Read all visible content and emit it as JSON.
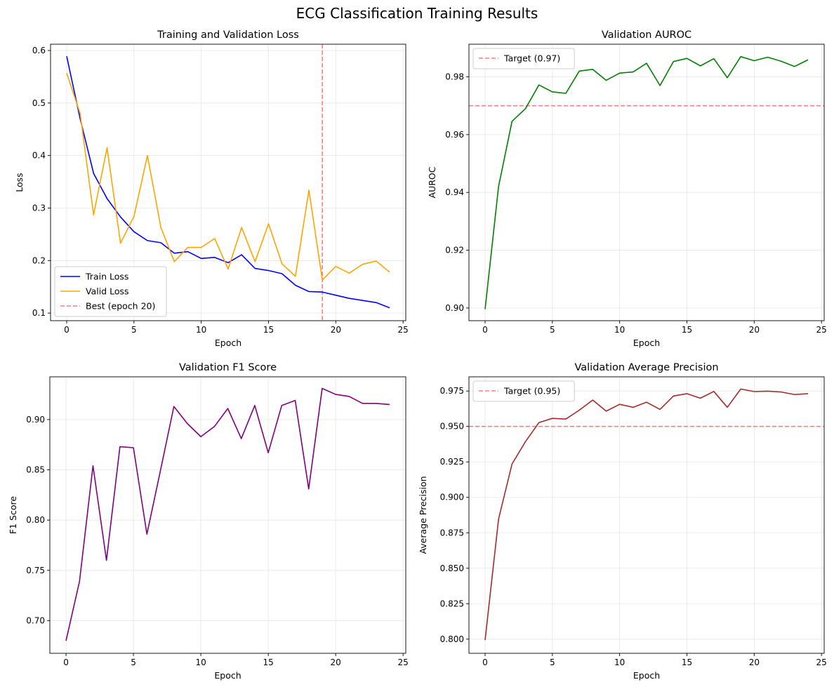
{
  "figure": {
    "suptitle": "ECG Classification Training Results"
  },
  "chart_data": [
    {
      "type": "line",
      "title": "Training and Validation Loss",
      "xlabel": "Epoch",
      "ylabel": "Loss",
      "xlim": [
        -1.2,
        25.2
      ],
      "ylim": [
        0.0855,
        0.612
      ],
      "xticks": [
        0,
        5,
        10,
        15,
        20,
        25
      ],
      "yticks": [
        0.1,
        0.2,
        0.3,
        0.4,
        0.5,
        0.6
      ],
      "ytick_decimals": 1,
      "grid": true,
      "legend_position": "lower-left",
      "x": [
        0,
        1,
        2,
        3,
        4,
        5,
        6,
        7,
        8,
        9,
        10,
        11,
        12,
        13,
        14,
        15,
        16,
        17,
        18,
        19,
        20,
        21,
        22,
        23,
        24
      ],
      "series": [
        {
          "name": "Train Loss",
          "color": "#0000ff",
          "values": [
            0.589,
            0.47,
            0.366,
            0.318,
            0.283,
            0.255,
            0.238,
            0.234,
            0.214,
            0.217,
            0.204,
            0.206,
            0.196,
            0.211,
            0.185,
            0.181,
            0.175,
            0.153,
            0.141,
            0.14,
            0.134,
            0.128,
            0.124,
            0.12,
            0.11
          ]
        },
        {
          "name": "Valid Loss",
          "color": "#ffa500",
          "values": [
            0.557,
            0.48,
            0.287,
            0.415,
            0.233,
            0.284,
            0.4,
            0.263,
            0.198,
            0.225,
            0.225,
            0.242,
            0.184,
            0.263,
            0.198,
            0.27,
            0.194,
            0.17,
            0.334,
            0.163,
            0.189,
            0.176,
            0.193,
            0.199,
            0.178
          ]
        }
      ],
      "reference_lines": [
        {
          "orientation": "vertical",
          "value": 19,
          "label": "Best (epoch 20)",
          "color": "#ff7f7f"
        }
      ]
    },
    {
      "type": "line",
      "title": "Validation AUROC",
      "xlabel": "Epoch",
      "ylabel": "AUROC",
      "xlim": [
        -1.2,
        25.2
      ],
      "ylim": [
        0.8956,
        0.9913
      ],
      "xticks": [
        0,
        5,
        10,
        15,
        20,
        25
      ],
      "yticks": [
        0.9,
        0.92,
        0.94,
        0.96,
        0.98
      ],
      "ytick_decimals": 2,
      "grid": true,
      "legend_position": "upper-left",
      "x": [
        0,
        1,
        2,
        3,
        4,
        5,
        6,
        7,
        8,
        9,
        10,
        11,
        12,
        13,
        14,
        15,
        16,
        17,
        18,
        19,
        20,
        21,
        22,
        23,
        24
      ],
      "series": [
        {
          "name": "",
          "color": "#008000",
          "values": [
            0.8996,
            0.942,
            0.9646,
            0.969,
            0.9772,
            0.9748,
            0.9743,
            0.982,
            0.9826,
            0.9788,
            0.9813,
            0.9817,
            0.9847,
            0.977,
            0.9853,
            0.9864,
            0.9838,
            0.9863,
            0.9797,
            0.987,
            0.9856,
            0.9868,
            0.9854,
            0.9836,
            0.9859
          ]
        }
      ],
      "reference_lines": [
        {
          "orientation": "horizontal",
          "value": 0.97,
          "label": "Target (0.97)",
          "color": "#ff7f7f"
        }
      ]
    },
    {
      "type": "line",
      "title": "Validation F1 Score",
      "xlabel": "Epoch",
      "ylabel": "F1 Score",
      "xlim": [
        -1.2,
        25.2
      ],
      "ylim": [
        0.6675,
        0.9425
      ],
      "xticks": [
        0,
        5,
        10,
        15,
        20,
        25
      ],
      "yticks": [
        0.7,
        0.75,
        0.8,
        0.85,
        0.9
      ],
      "ytick_decimals": 2,
      "grid": true,
      "x": [
        0,
        1,
        2,
        3,
        4,
        5,
        6,
        7,
        8,
        9,
        10,
        11,
        12,
        13,
        14,
        15,
        16,
        17,
        18,
        19,
        20,
        21,
        22,
        23,
        24
      ],
      "series": [
        {
          "name": "",
          "color": "#800080",
          "values": [
            0.68,
            0.739,
            0.854,
            0.76,
            0.873,
            0.872,
            0.786,
            0.849,
            0.913,
            0.896,
            0.883,
            0.893,
            0.911,
            0.881,
            0.914,
            0.867,
            0.914,
            0.919,
            0.831,
            0.931,
            0.925,
            0.923,
            0.916,
            0.916,
            0.915
          ]
        }
      ],
      "reference_lines": []
    },
    {
      "type": "line",
      "title": "Validation Average Precision",
      "xlabel": "Epoch",
      "ylabel": "Average Precision",
      "xlim": [
        -1.2,
        25.2
      ],
      "ylim": [
        0.79,
        0.985
      ],
      "xticks": [
        0,
        5,
        10,
        15,
        20,
        25
      ],
      "yticks": [
        0.8,
        0.825,
        0.85,
        0.875,
        0.9,
        0.925,
        0.95,
        0.975
      ],
      "ytick_decimals": 3,
      "grid": true,
      "legend_position": "upper-left",
      "x": [
        0,
        1,
        2,
        3,
        4,
        5,
        6,
        7,
        8,
        9,
        10,
        11,
        12,
        13,
        14,
        15,
        16,
        17,
        18,
        19,
        20,
        21,
        22,
        23,
        24
      ],
      "series": [
        {
          "name": "",
          "color": "#a52a2a",
          "values": [
            0.7993,
            0.8846,
            0.9235,
            0.9393,
            0.9527,
            0.9557,
            0.9552,
            0.9615,
            0.9686,
            0.9608,
            0.9656,
            0.9635,
            0.9671,
            0.962,
            0.9715,
            0.9731,
            0.9699,
            0.9747,
            0.9635,
            0.9764,
            0.9746,
            0.9749,
            0.9743,
            0.9725,
            0.9731
          ]
        }
      ],
      "reference_lines": [
        {
          "orientation": "horizontal",
          "value": 0.95,
          "label": "Target (0.95)",
          "color": "#ff7f7f"
        }
      ]
    }
  ]
}
